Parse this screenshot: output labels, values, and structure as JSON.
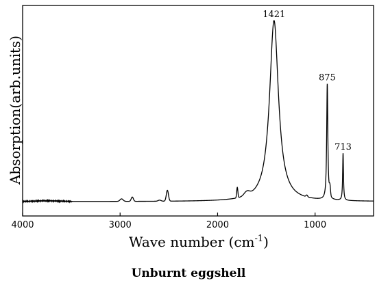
{
  "chart_data": {
    "type": "line",
    "title": "",
    "caption": "Unburnt eggshell",
    "xlabel_main": "Wave number (cm",
    "xlabel_sup": "-1",
    "xlabel_tail": ")",
    "ylabel": "Absorption(arb.units)",
    "xlim": [
      4000,
      400
    ],
    "x_reversed": true,
    "y_ticks_shown": false,
    "x_ticks": [
      {
        "value": 4000,
        "label": "4000"
      },
      {
        "value": 3000,
        "label": "3000"
      },
      {
        "value": 2000,
        "label": "2000"
      },
      {
        "value": 1000,
        "label": "1000"
      }
    ],
    "baseline": 0,
    "peaks": [
      {
        "x": 3750,
        "height": 0.004,
        "width": 120,
        "shape": "g"
      },
      {
        "x": 2985,
        "height": 0.014,
        "width": 16,
        "shape": "g"
      },
      {
        "x": 2875,
        "height": 0.024,
        "width": 11,
        "shape": "g"
      },
      {
        "x": 2595,
        "height": 0.006,
        "width": 15,
        "shape": "g"
      },
      {
        "x": 2515,
        "height": 0.06,
        "width": 11,
        "shape": "g"
      },
      {
        "x": 1798,
        "height": 0.058,
        "width": 6,
        "shape": "g"
      },
      {
        "x": 1700,
        "height": 0.022,
        "width": 28,
        "shape": "g"
      },
      {
        "x": 1421,
        "height": 1.0,
        "width": 55,
        "shape": "l"
      },
      {
        "x": 1085,
        "height": 0.01,
        "width": 8,
        "shape": "g"
      },
      {
        "x": 875,
        "height": 0.64,
        "width": 7,
        "shape": "l"
      },
      {
        "x": 848,
        "height": 0.05,
        "width": 6,
        "shape": "g"
      },
      {
        "x": 713,
        "height": 0.26,
        "width": 5,
        "shape": "l"
      }
    ],
    "annotations": [
      {
        "x": 1421,
        "label": "1421"
      },
      {
        "x": 875,
        "label": "875"
      },
      {
        "x": 713,
        "label": "713"
      }
    ]
  }
}
